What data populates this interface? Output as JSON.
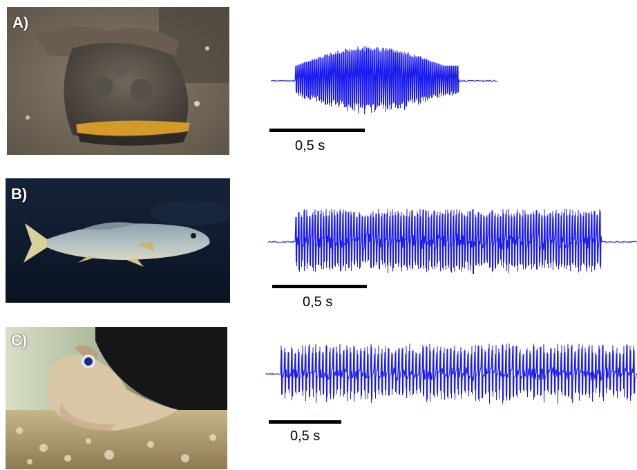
{
  "panels": [
    {
      "label": "A)",
      "photo_subject": "toadfish-buried-in-sand",
      "scale_label": "0,5 s"
    },
    {
      "label": "B)",
      "photo_subject": "meagre-fish-swimming",
      "scale_label": "0,5 s"
    },
    {
      "label": "C)",
      "photo_subject": "goby-on-gravel",
      "scale_label": "0,5 s"
    }
  ],
  "colors": {
    "waveform": "#1a1aee",
    "scale_bar": "#000000"
  }
}
